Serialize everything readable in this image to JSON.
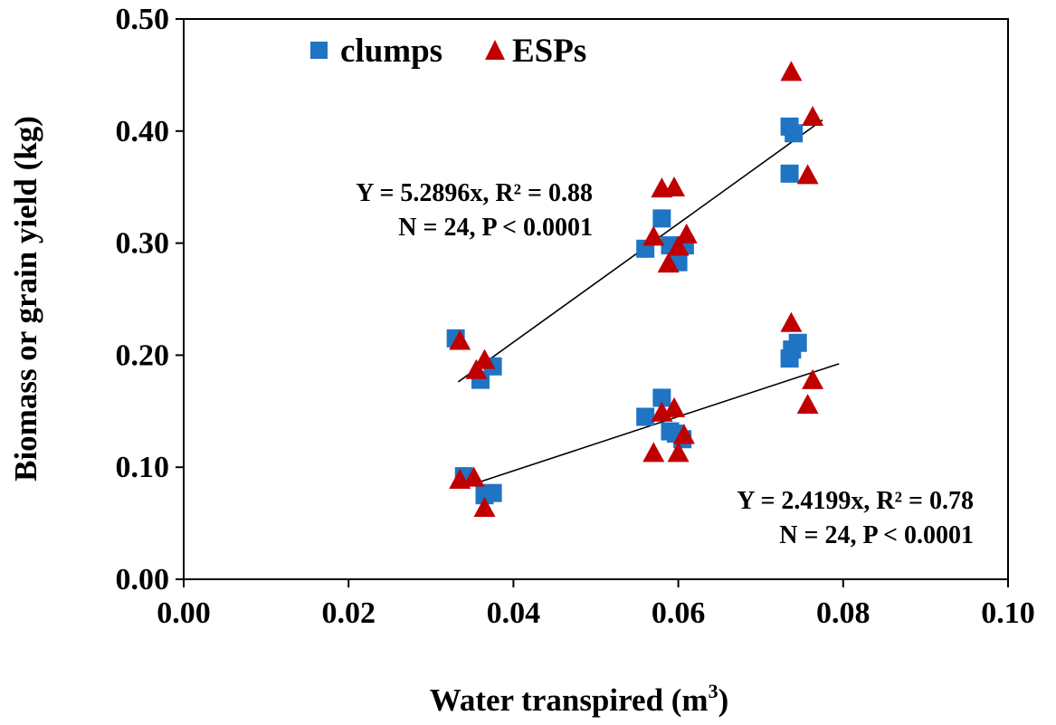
{
  "chart_data": {
    "type": "scatter",
    "xlabel": "Water transpired (m",
    "xlabel_sup": "3",
    "xlabel_close": ")",
    "ylabel": "Biomass or grain yield (kg)",
    "xlim": [
      0,
      0.1
    ],
    "ylim": [
      0,
      0.5
    ],
    "x_ticks": [
      "0.00",
      "0.02",
      "0.04",
      "0.06",
      "0.08",
      "0.10"
    ],
    "y_ticks": [
      "0.00",
      "0.10",
      "0.20",
      "0.30",
      "0.40",
      "0.50"
    ],
    "grid": false,
    "legend_position": "top-left",
    "series": [
      {
        "name": "clumps",
        "marker": "square",
        "color": "#1f74c4",
        "points": [
          [
            0.033,
            0.215
          ],
          [
            0.036,
            0.178
          ],
          [
            0.0375,
            0.19
          ],
          [
            0.056,
            0.295
          ],
          [
            0.058,
            0.322
          ],
          [
            0.059,
            0.298
          ],
          [
            0.06,
            0.283
          ],
          [
            0.0608,
            0.298
          ],
          [
            0.0735,
            0.404
          ],
          [
            0.074,
            0.398
          ],
          [
            0.0735,
            0.362
          ],
          [
            0.034,
            0.092
          ],
          [
            0.0375,
            0.077
          ],
          [
            0.0365,
            0.075
          ],
          [
            0.056,
            0.145
          ],
          [
            0.058,
            0.162
          ],
          [
            0.059,
            0.132
          ],
          [
            0.0605,
            0.125
          ],
          [
            0.0597,
            0.13
          ],
          [
            0.0735,
            0.197
          ],
          [
            0.0738,
            0.205
          ],
          [
            0.0745,
            0.211
          ]
        ]
      },
      {
        "name": "ESPs",
        "marker": "triangle",
        "color": "#c00000",
        "points": [
          [
            0.0335,
            0.212
          ],
          [
            0.0355,
            0.186
          ],
          [
            0.0365,
            0.195
          ],
          [
            0.057,
            0.305
          ],
          [
            0.058,
            0.348
          ],
          [
            0.0595,
            0.349
          ],
          [
            0.0588,
            0.281
          ],
          [
            0.06,
            0.296
          ],
          [
            0.061,
            0.307
          ],
          [
            0.0737,
            0.452
          ],
          [
            0.0763,
            0.412
          ],
          [
            0.0757,
            0.36
          ],
          [
            0.0335,
            0.088
          ],
          [
            0.0352,
            0.09
          ],
          [
            0.0365,
            0.063
          ],
          [
            0.057,
            0.112
          ],
          [
            0.058,
            0.148
          ],
          [
            0.0595,
            0.152
          ],
          [
            0.06,
            0.112
          ],
          [
            0.0607,
            0.128
          ],
          [
            0.0737,
            0.228
          ],
          [
            0.0763,
            0.177
          ],
          [
            0.0757,
            0.155
          ]
        ]
      }
    ],
    "trendlines": [
      {
        "slope": 5.2896,
        "x_range": [
          0.0333,
          0.0775
        ]
      },
      {
        "slope": 2.4199,
        "x_range": [
          0.0338,
          0.0795
        ]
      }
    ],
    "annotations": [
      {
        "line1": "Y = 5.2896x, R² = 0.88",
        "line2": "N = 24, P < 0.0001"
      },
      {
        "line1": "Y = 2.4199x, R² = 0.78",
        "line2": "N = 24, P < 0.0001"
      }
    ]
  }
}
